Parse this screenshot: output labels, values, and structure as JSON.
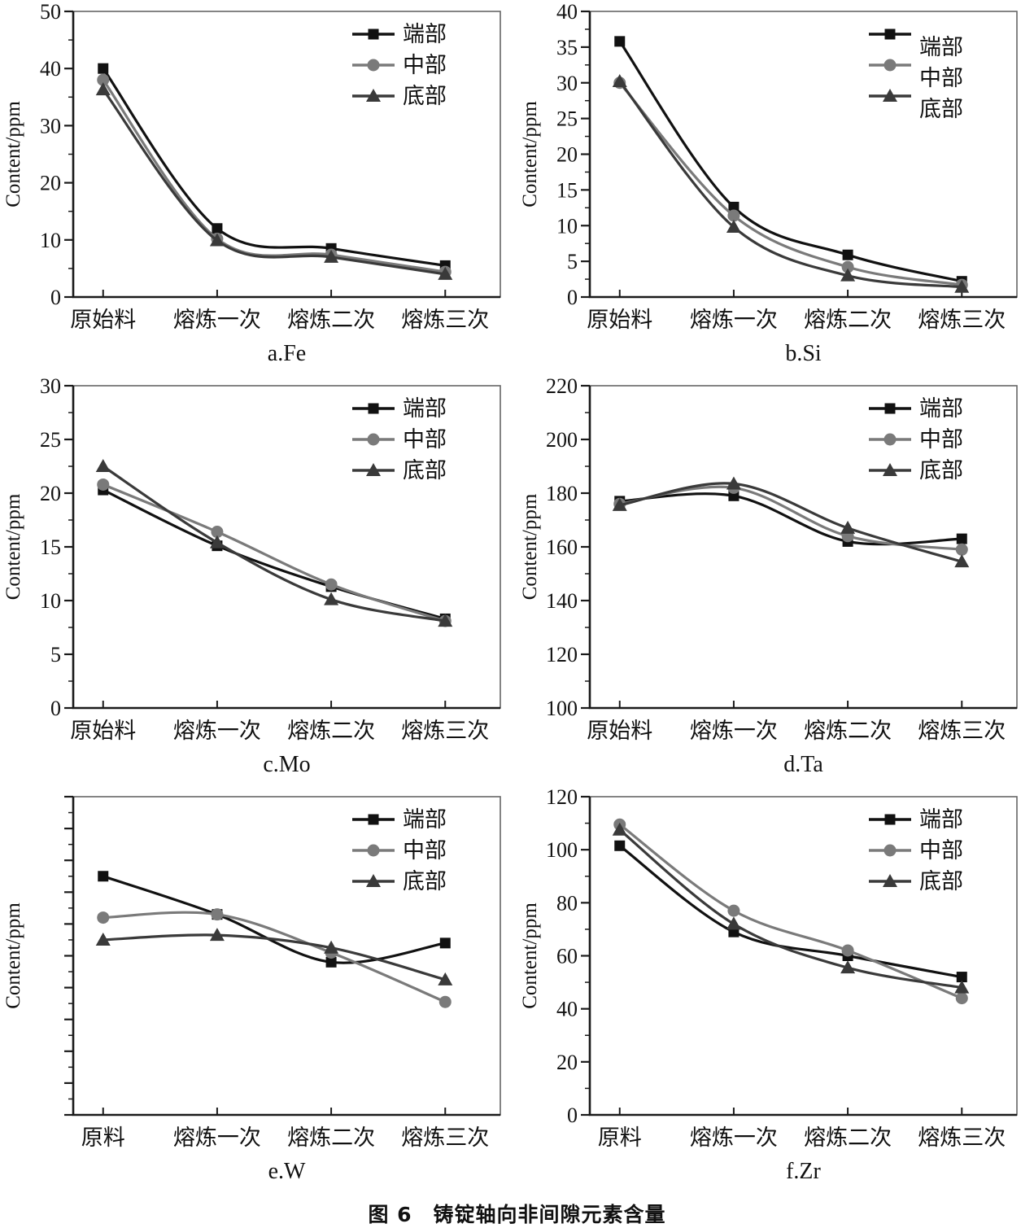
{
  "figure": {
    "caption": "图 6　铸锭轴向非间隙元素含量"
  },
  "chart_data": [
    {
      "type": "line",
      "title": "a.Fe",
      "ylabel": "Content/ppm",
      "categories": [
        "原始料",
        "熔炼一次",
        "熔炼二次",
        "熔炼三次"
      ],
      "ylim": [
        0,
        50
      ],
      "ytick_major": 10,
      "ytick_minor": 5,
      "show_ytick_labels": true,
      "grid": false,
      "legend_position": "top-right",
      "legend_label_offset": false,
      "series": [
        {
          "name": "端部",
          "key": "end",
          "marker": "square",
          "color": "#111111",
          "values": [
            40,
            12,
            8.5,
            5.5
          ]
        },
        {
          "name": "中部",
          "key": "middle",
          "marker": "circle",
          "color": "#7a7a7a",
          "values": [
            38,
            10.2,
            7.4,
            4.4
          ]
        },
        {
          "name": "底部",
          "key": "bottom",
          "marker": "triangle",
          "color": "#3a3a3a",
          "values": [
            36.3,
            9.9,
            7.0,
            4.0
          ]
        }
      ]
    },
    {
      "type": "line",
      "title": "b.Si",
      "ylabel": "Content/ppm",
      "categories": [
        "原始料",
        "熔炼一次",
        "熔炼二次",
        "熔炼三次"
      ],
      "ylim": [
        0,
        40
      ],
      "ytick_major": 5,
      "ytick_minor": 2.5,
      "show_ytick_labels": true,
      "grid": false,
      "legend_position": "top-right",
      "legend_label_offset": true,
      "series": [
        {
          "name": "端部",
          "key": "end",
          "marker": "square",
          "color": "#111111",
          "values": [
            35.8,
            12.6,
            5.9,
            2.2
          ]
        },
        {
          "name": "中部",
          "key": "middle",
          "marker": "circle",
          "color": "#7a7a7a",
          "values": [
            30.0,
            11.4,
            4.2,
            1.7
          ]
        },
        {
          "name": "底部",
          "key": "bottom",
          "marker": "triangle",
          "color": "#3a3a3a",
          "values": [
            30.2,
            9.8,
            3.0,
            1.4
          ]
        }
      ]
    },
    {
      "type": "line",
      "title": "c.Mo",
      "ylabel": "Content/ppm",
      "categories": [
        "原始料",
        "熔炼一次",
        "熔炼二次",
        "熔炼三次"
      ],
      "ylim": [
        0,
        30
      ],
      "ytick_major": 5,
      "ytick_minor": 2.5,
      "show_ytick_labels": true,
      "grid": false,
      "legend_position": "top-right",
      "legend_label_offset": false,
      "series": [
        {
          "name": "端部",
          "key": "end",
          "marker": "square",
          "color": "#111111",
          "values": [
            20.3,
            15.1,
            11.3,
            8.3
          ]
        },
        {
          "name": "中部",
          "key": "middle",
          "marker": "circle",
          "color": "#7a7a7a",
          "values": [
            20.8,
            16.4,
            11.5,
            8.1
          ]
        },
        {
          "name": "底部",
          "key": "bottom",
          "marker": "triangle",
          "color": "#3a3a3a",
          "values": [
            22.5,
            15.4,
            10.1,
            8.1
          ]
        }
      ]
    },
    {
      "type": "line",
      "title": "d.Ta",
      "ylabel": "Content/ppm",
      "categories": [
        "原始料",
        "熔炼一次",
        "熔炼二次",
        "熔炼三次"
      ],
      "ylim": [
        100,
        220
      ],
      "ytick_major": 20,
      "ytick_minor": 10,
      "show_ytick_labels": true,
      "grid": false,
      "legend_position": "top-right",
      "legend_label_offset": false,
      "series": [
        {
          "name": "端部",
          "key": "end",
          "marker": "square",
          "color": "#111111",
          "values": [
            177,
            179,
            162,
            163
          ]
        },
        {
          "name": "中部",
          "key": "middle",
          "marker": "circle",
          "color": "#7a7a7a",
          "values": [
            176,
            182,
            164,
            159
          ]
        },
        {
          "name": "底部",
          "key": "bottom",
          "marker": "triangle",
          "color": "#3a3a3a",
          "values": [
            175.5,
            183.5,
            167,
            154.5
          ]
        }
      ]
    },
    {
      "type": "line",
      "title": "e.W",
      "ylabel": "Content/ppm",
      "categories": [
        "原料",
        "熔炼一次",
        "熔炼二次",
        "熔炼三次"
      ],
      "ylim": [
        0,
        100
      ],
      "ytick_major": 10,
      "ytick_minor": 5,
      "show_ytick_labels": false,
      "grid": false,
      "legend_position": "top-right",
      "legend_label_offset": false,
      "series": [
        {
          "name": "端部",
          "key": "end",
          "marker": "square",
          "color": "#111111",
          "values": [
            75,
            63,
            48,
            54
          ]
        },
        {
          "name": "中部",
          "key": "middle",
          "marker": "circle",
          "color": "#7a7a7a",
          "values": [
            62,
            63,
            51,
            35.5
          ]
        },
        {
          "name": "底部",
          "key": "bottom",
          "marker": "triangle",
          "color": "#3a3a3a",
          "values": [
            55,
            56.5,
            52.5,
            42.5
          ]
        }
      ]
    },
    {
      "type": "line",
      "title": "f.Zr",
      "ylabel": "Content/ppm",
      "categories": [
        "原料",
        "熔炼一次",
        "熔炼二次",
        "熔炼三次"
      ],
      "ylim": [
        0,
        120
      ],
      "ytick_major": 20,
      "ytick_minor": 10,
      "show_ytick_labels": true,
      "grid": false,
      "legend_position": "top-right",
      "legend_label_offset": false,
      "series": [
        {
          "name": "端部",
          "key": "end",
          "marker": "square",
          "color": "#111111",
          "values": [
            101.5,
            69,
            60,
            52
          ]
        },
        {
          "name": "中部",
          "key": "middle",
          "marker": "circle",
          "color": "#7a7a7a",
          "values": [
            109.5,
            77,
            62,
            44
          ]
        },
        {
          "name": "底部",
          "key": "bottom",
          "marker": "triangle",
          "color": "#3a3a3a",
          "values": [
            107.5,
            72,
            55.5,
            48
          ]
        }
      ]
    }
  ]
}
